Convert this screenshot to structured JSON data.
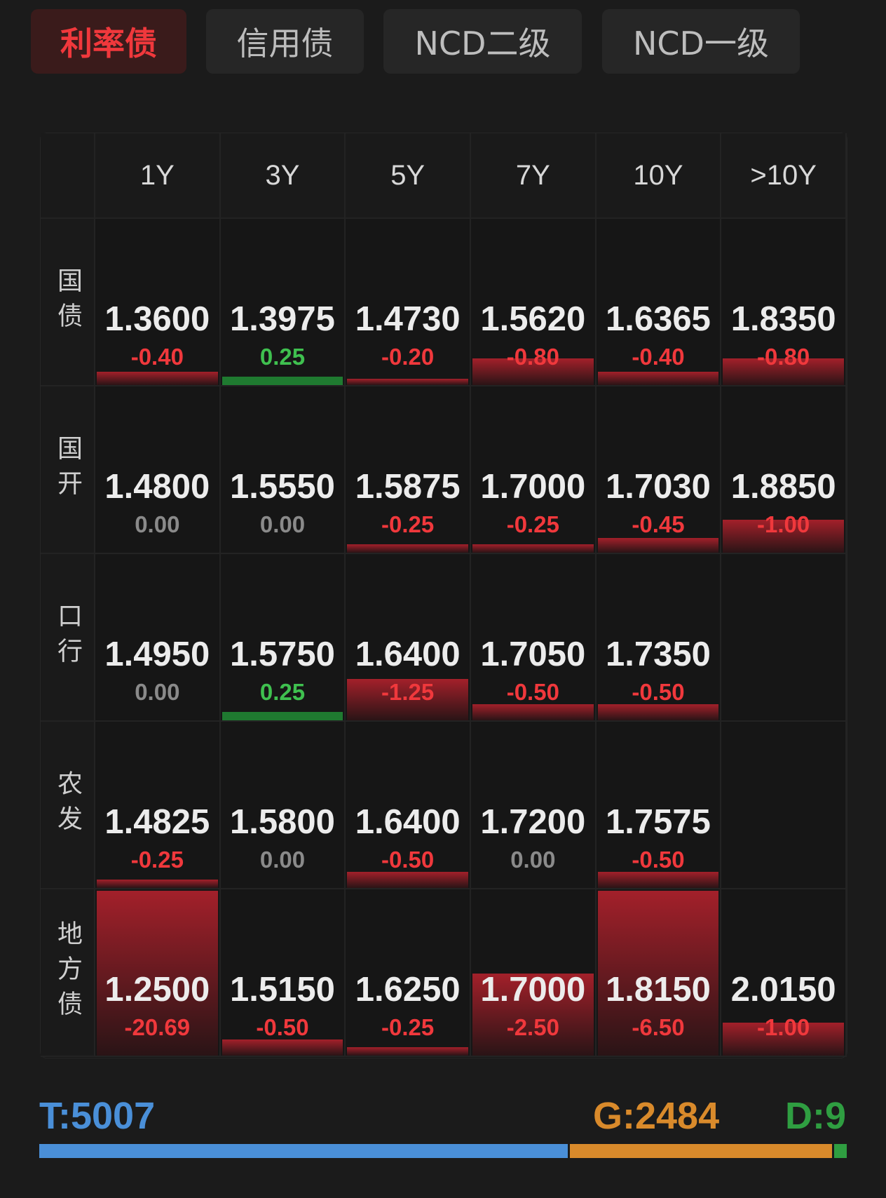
{
  "tabs": [
    {
      "label": "利率债",
      "active": true
    },
    {
      "label": "信用债",
      "active": false
    },
    {
      "label": "NCD二级",
      "active": false
    },
    {
      "label": "NCD一级",
      "active": false
    }
  ],
  "table": {
    "columns": [
      "1Y",
      "3Y",
      "5Y",
      "7Y",
      "10Y",
      ">10Y"
    ],
    "rows": [
      {
        "label": "国债",
        "cells": [
          {
            "value": "1.3600",
            "change": "-0.40"
          },
          {
            "value": "1.3975",
            "change": "0.25"
          },
          {
            "value": "1.4730",
            "change": "-0.20"
          },
          {
            "value": "1.5620",
            "change": "-0.80"
          },
          {
            "value": "1.6365",
            "change": "-0.40"
          },
          {
            "value": "1.8350",
            "change": "-0.80"
          }
        ]
      },
      {
        "label": "国开",
        "cells": [
          {
            "value": "1.4800",
            "change": "0.00"
          },
          {
            "value": "1.5550",
            "change": "0.00"
          },
          {
            "value": "1.5875",
            "change": "-0.25"
          },
          {
            "value": "1.7000",
            "change": "-0.25"
          },
          {
            "value": "1.7030",
            "change": "-0.45"
          },
          {
            "value": "1.8850",
            "change": "-1.00"
          }
        ]
      },
      {
        "label": "口行",
        "cells": [
          {
            "value": "1.4950",
            "change": "0.00"
          },
          {
            "value": "1.5750",
            "change": "0.25"
          },
          {
            "value": "1.6400",
            "change": "-1.25"
          },
          {
            "value": "1.7050",
            "change": "-0.50"
          },
          {
            "value": "1.7350",
            "change": "-0.50"
          },
          null
        ]
      },
      {
        "label": "农发",
        "cells": [
          {
            "value": "1.4825",
            "change": "-0.25"
          },
          {
            "value": "1.5800",
            "change": "0.00"
          },
          {
            "value": "1.6400",
            "change": "-0.50"
          },
          {
            "value": "1.7200",
            "change": "0.00"
          },
          {
            "value": "1.7575",
            "change": "-0.50"
          },
          null
        ]
      },
      {
        "label": "地方债",
        "cells": [
          {
            "value": "1.2500",
            "change": "-20.69"
          },
          {
            "value": "1.5150",
            "change": "-0.50"
          },
          {
            "value": "1.6250",
            "change": "-0.25"
          },
          {
            "value": "1.7000",
            "change": "-2.50"
          },
          {
            "value": "1.8150",
            "change": "-6.50"
          },
          {
            "value": "2.0150",
            "change": "-1.00"
          }
        ]
      }
    ]
  },
  "footer": {
    "stats": [
      {
        "label": "T:5007",
        "count": 5007,
        "color": "#4a8fd8"
      },
      {
        "label": "G:2484",
        "count": 2484,
        "color": "#d98a2b"
      },
      {
        "label": "D:9",
        "count": 9,
        "color": "#2f9e41"
      }
    ]
  },
  "colors": {
    "down": "#f0383c",
    "up": "#3fc04f",
    "flat": "#8a8a8a",
    "down_bar": "#a3202a",
    "up_bar": "#1f7a30"
  }
}
